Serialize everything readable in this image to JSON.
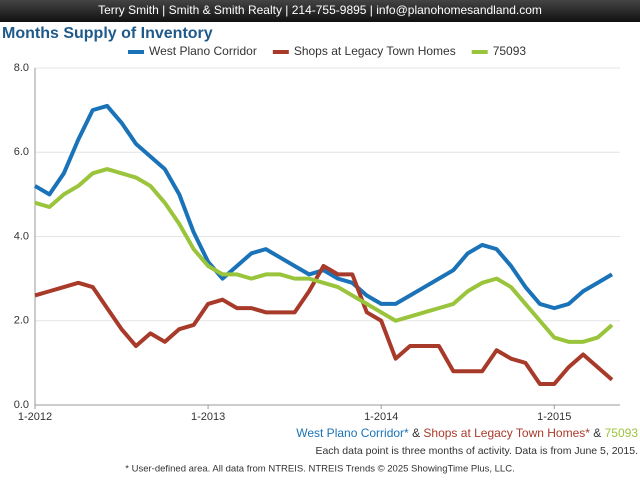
{
  "header": "Terry Smith | Smith & Smith Realty | 214-755-9895 | info@planohomesandland.com",
  "chart_data": {
    "type": "line",
    "title": "Months Supply of Inventory",
    "categories": [
      "1-2012",
      null,
      null,
      null,
      null,
      null,
      null,
      null,
      null,
      null,
      null,
      null,
      "1-2013",
      null,
      null,
      null,
      null,
      null,
      null,
      null,
      null,
      null,
      null,
      null,
      "1-2014",
      null,
      null,
      null,
      null,
      null,
      null,
      null,
      null,
      null,
      null,
      null,
      "1-2015",
      null,
      null,
      null,
      null
    ],
    "series": [
      {
        "name": "West Plano Corridor",
        "color": "#1a73b8",
        "values": [
          5.2,
          5.0,
          5.5,
          6.3,
          7.0,
          7.1,
          6.7,
          6.2,
          5.9,
          5.6,
          5.0,
          4.1,
          3.4,
          3.0,
          3.3,
          3.6,
          3.7,
          3.5,
          3.3,
          3.1,
          3.2,
          3.0,
          2.9,
          2.6,
          2.4,
          2.4,
          2.6,
          2.8,
          3.0,
          3.2,
          3.6,
          3.8,
          3.7,
          3.3,
          2.8,
          2.4,
          2.3,
          2.4,
          2.7,
          2.9,
          3.1
        ]
      },
      {
        "name": "Shops at Legacy Town Homes",
        "color": "#a83a2a",
        "values": [
          2.6,
          2.7,
          2.8,
          2.9,
          2.8,
          2.3,
          1.8,
          1.4,
          1.7,
          1.5,
          1.8,
          1.9,
          2.4,
          2.5,
          2.3,
          2.3,
          2.2,
          2.2,
          2.2,
          2.7,
          3.3,
          3.1,
          3.1,
          2.2,
          2.0,
          1.1,
          1.4,
          1.4,
          1.4,
          0.8,
          0.8,
          0.8,
          1.3,
          1.1,
          1.0,
          0.5,
          0.5,
          0.9,
          1.2,
          0.9,
          0.6
        ]
      },
      {
        "name": "75093",
        "color": "#9ac43c",
        "values": [
          4.8,
          4.7,
          5.0,
          5.2,
          5.5,
          5.6,
          5.5,
          5.4,
          5.2,
          4.8,
          4.3,
          3.7,
          3.3,
          3.1,
          3.1,
          3.0,
          3.1,
          3.1,
          3.0,
          3.0,
          2.9,
          2.8,
          2.6,
          2.4,
          2.2,
          2.0,
          2.1,
          2.2,
          2.3,
          2.4,
          2.7,
          2.9,
          3.0,
          2.8,
          2.4,
          2.0,
          1.6,
          1.5,
          1.5,
          1.6,
          1.9
        ]
      }
    ],
    "ylim": [
      0,
      8
    ],
    "yticks": [
      {
        "value": 0,
        "label": "0.0"
      },
      {
        "value": 2,
        "label": "2.0"
      },
      {
        "value": 4,
        "label": "4.0"
      },
      {
        "value": 6,
        "label": "6.0"
      },
      {
        "value": 8,
        "label": "8.0"
      }
    ],
    "grid": true,
    "legend": "top",
    "bottom_legend": [
      "West Plano Corridor*",
      " & ",
      "Shops at Legacy Town Homes*",
      " & ",
      "75093"
    ],
    "note": "Each data point is three months of activity. Data is from June 5, 2015.",
    "footnote": "* User-defined area. All data from NTREIS. NTREIS Trends © 2025 ShowingTime Plus, LLC."
  }
}
